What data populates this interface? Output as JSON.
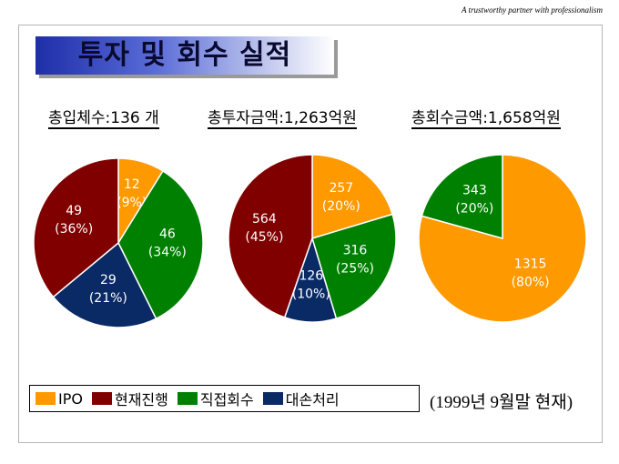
{
  "tagline": "A trustworthy partner with professionalism",
  "title": "투자 및 회수 실적",
  "stats": [
    "총입체수:136 개",
    "총투자금액:1,263억원",
    "총회수금액:1,658억원"
  ],
  "colors": {
    "IPO": "#ff9900",
    "현재진행": "#800000",
    "직접회수": "#008000",
    "대손처리": "#0a2a66"
  },
  "chart_data": [
    {
      "type": "pie",
      "title": "총입체수:136 개",
      "slices": [
        {
          "category": "IPO",
          "value": 12,
          "label": "12",
          "pct": "(9%)"
        },
        {
          "category": "직접회수",
          "value": 46,
          "label": "46",
          "pct": "(34%)"
        },
        {
          "category": "대손처리",
          "value": 29,
          "label": "29",
          "pct": "(21%)"
        },
        {
          "category": "현재진행",
          "value": 49,
          "label": "49",
          "pct": "(36%)"
        }
      ]
    },
    {
      "type": "pie",
      "title": "총투자금액:1,263억원",
      "slices": [
        {
          "category": "IPO",
          "value": 257,
          "label": "257",
          "pct": "(20%)"
        },
        {
          "category": "직접회수",
          "value": 316,
          "label": "316",
          "pct": "(25%)"
        },
        {
          "category": "대손처리",
          "value": 126,
          "label": "126",
          "pct": "(10%)"
        },
        {
          "category": "현재진행",
          "value": 564,
          "label": "564",
          "pct": "(45%)"
        }
      ]
    },
    {
      "type": "pie",
      "title": "총회수금액:1,658억원",
      "slices": [
        {
          "category": "IPO",
          "value": 1315,
          "label": "1315",
          "pct": "(80%)"
        },
        {
          "category": "직접회수",
          "value": 343,
          "label": "343",
          "pct": "(20%)"
        }
      ]
    }
  ],
  "legend": [
    {
      "category": "IPO",
      "label": "IPO"
    },
    {
      "category": "현재진행",
      "label": "현재진행"
    },
    {
      "category": "직접회수",
      "label": "직접회수"
    },
    {
      "category": "대손처리",
      "label": "대손처리"
    }
  ],
  "date_note": "(1999년 9월말 현재)"
}
